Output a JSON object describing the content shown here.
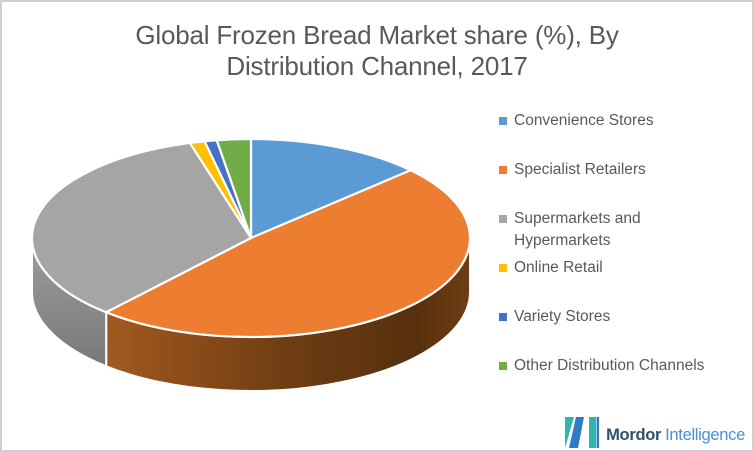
{
  "title": {
    "line1": "Global Frozen Bread Market share (%), By",
    "line2": "Distribution Channel, 2017"
  },
  "chart_data": {
    "type": "pie",
    "is_3d": true,
    "title": "Global Frozen Bread Market share (%), By Distribution Channel, 2017",
    "values_unit": "%",
    "start_angle_deg": 0,
    "direction": "clockwise",
    "legend_position": "right",
    "slices": [
      {
        "label": "Convenience Stores",
        "label_lines": [
          "Convenience Stores"
        ],
        "value": 13,
        "color": "#5B9BD5"
      },
      {
        "label": "Specialist Retailers",
        "label_lines": [
          "Specialist Retailers"
        ],
        "value": 48.5,
        "color": "#ED7D31"
      },
      {
        "label": "Supermarkets and Hypermarkets",
        "label_lines": [
          "Supermarkets and",
          "Hypermarkets"
        ],
        "value": 34,
        "color": "#A5A5A5"
      },
      {
        "label": "Online Retail",
        "label_lines": [
          "Online Retail"
        ],
        "value": 1.1,
        "color": "#FFC000"
      },
      {
        "label": "Variety Stores",
        "label_lines": [
          "Variety Stores"
        ],
        "value": 0.9,
        "color": "#4472C4"
      },
      {
        "label": "Other Distribution Channels",
        "label_lines": [
          "Other Distribution Channels"
        ],
        "value": 2.5,
        "color": "#70AD47"
      }
    ]
  },
  "branding": {
    "name_bold": "Mordor",
    "name_light": "Intelligence",
    "teal": "#2FB5AA",
    "blue": "#2E7CC4"
  }
}
